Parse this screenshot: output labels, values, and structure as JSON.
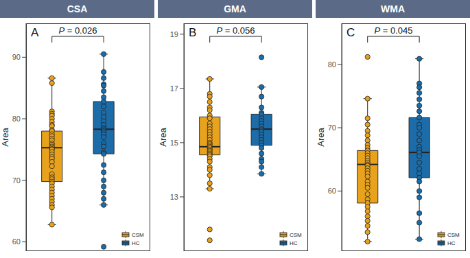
{
  "chart_data": [
    {
      "type": "box",
      "title": "CSA",
      "panel_label": "A",
      "annotation": "P = 0.026",
      "y_label": "Area",
      "ylim": [
        58.5,
        95.5
      ],
      "yticks": [
        60,
        70,
        80,
        90
      ],
      "legend": "lower right",
      "tick_labels": "y",
      "marker": "circle",
      "series": [
        {
          "name": "CSM",
          "color": "#E8A21C",
          "box": {
            "whisker_low": 62.8,
            "q1": 69.8,
            "median": 75.3,
            "q3": 78.0,
            "whisker_high": 86.6
          },
          "values": [
            86.6,
            85.8,
            81.2,
            80.8,
            80.5,
            80.0,
            79.5,
            79.0,
            78.8,
            78.2,
            78.0,
            77.5,
            77.2,
            76.8,
            76.5,
            76.0,
            75.8,
            75.5,
            75.3,
            75.1,
            75.0,
            74.6,
            74.2,
            73.8,
            73.5,
            73.0,
            72.3,
            71.0,
            70.5,
            70.2,
            69.8,
            69.5,
            69.0,
            68.5,
            68.0,
            67.5,
            67.0,
            66.5,
            66.0,
            65.6,
            62.8
          ]
        },
        {
          "name": "HC",
          "color": "#1B6CA8",
          "box": {
            "whisker_low": 66.0,
            "q1": 74.3,
            "median": 78.3,
            "q3": 82.8,
            "whisker_high": 90.5
          },
          "values": [
            90.5,
            87.6,
            86.6,
            85.6,
            85.4,
            84.5,
            83.5,
            82.8,
            82.0,
            81.0,
            80.3,
            79.6,
            79.0,
            78.5,
            78.3,
            78.0,
            77.8,
            77.5,
            77.0,
            76.0,
            75.5,
            74.5,
            74.3,
            72.5,
            71.3,
            70.0,
            69.0,
            68.0,
            67.0,
            66.0,
            59.2
          ]
        }
      ]
    },
    {
      "type": "box",
      "title": "GMA",
      "panel_label": "B",
      "annotation": "P = 0.056",
      "y_label": "Area",
      "ylim": [
        11.0,
        19.4
      ],
      "yticks": [
        13,
        15,
        17,
        19
      ],
      "legend": "lower right",
      "tick_labels": "y",
      "marker": "circle",
      "series": [
        {
          "name": "CSM",
          "color": "#E8A21C",
          "box": {
            "whisker_low": 13.3,
            "q1": 14.55,
            "median": 14.85,
            "q3": 15.95,
            "whisker_high": 17.35
          },
          "values": [
            17.35,
            16.8,
            16.7,
            16.5,
            16.3,
            16.2,
            16.0,
            15.9,
            15.7,
            15.6,
            15.5,
            15.4,
            15.3,
            15.2,
            15.1,
            15.0,
            14.95,
            14.9,
            14.85,
            14.8,
            14.75,
            14.7,
            14.65,
            14.6,
            14.55,
            14.5,
            14.4,
            14.3,
            14.1,
            14.0,
            13.8,
            13.5,
            13.3,
            11.8,
            11.4
          ]
        },
        {
          "name": "HC",
          "color": "#1B6CA8",
          "box": {
            "whisker_low": 13.85,
            "q1": 14.9,
            "median": 15.5,
            "q3": 16.05,
            "whisker_high": 17.05
          },
          "values": [
            18.15,
            17.05,
            16.7,
            16.3,
            16.1,
            16.05,
            15.9,
            15.8,
            15.7,
            15.6,
            15.5,
            15.45,
            15.4,
            15.3,
            15.2,
            15.1,
            15.0,
            14.9,
            14.8,
            14.6,
            14.4,
            14.3,
            14.1,
            13.85
          ]
        }
      ]
    },
    {
      "type": "box",
      "title": "WMA",
      "panel_label": "C",
      "annotation": "P = 0.045",
      "y_label": "Area",
      "ylim": [
        50.5,
        86.5
      ],
      "yticks": [
        60,
        70,
        80
      ],
      "legend": "lower right",
      "tick_labels": "y",
      "marker": "circle",
      "series": [
        {
          "name": "CSM",
          "color": "#E8A21C",
          "box": {
            "whisker_low": 52.0,
            "q1": 58.1,
            "median": 64.2,
            "q3": 66.4,
            "whisker_high": 74.6
          },
          "values": [
            81.2,
            74.6,
            71.5,
            70.5,
            69.5,
            68.8,
            68.0,
            67.3,
            66.8,
            66.4,
            66.0,
            65.6,
            65.2,
            64.8,
            64.5,
            64.2,
            64.0,
            63.6,
            63.2,
            62.8,
            62.3,
            61.5,
            61.0,
            60.5,
            59.5,
            58.7,
            58.1,
            57.5,
            56.8,
            56.0,
            55.3,
            54.5,
            53.5,
            52.0
          ]
        },
        {
          "name": "HC",
          "color": "#1B6CA8",
          "box": {
            "whisker_low": 52.4,
            "q1": 62.1,
            "median": 66.1,
            "q3": 71.6,
            "whisker_high": 80.9
          },
          "values": [
            80.9,
            77.0,
            76.4,
            75.5,
            74.5,
            73.5,
            72.6,
            71.6,
            70.5,
            70.0,
            69.0,
            68.0,
            67.0,
            66.5,
            66.1,
            65.5,
            64.5,
            63.5,
            62.8,
            62.1,
            61.5,
            60.0,
            59.0,
            56.5,
            55.0,
            52.4
          ]
        }
      ]
    }
  ]
}
